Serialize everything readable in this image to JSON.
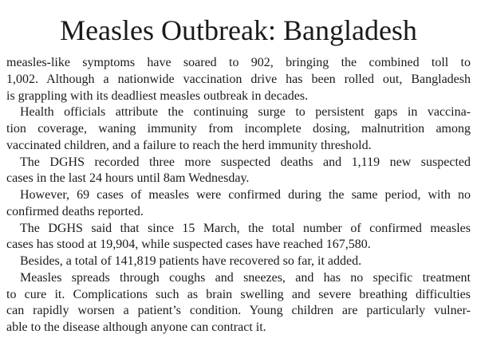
{
  "header": {
    "title": "Measles Outbreak: Bangladesh"
  },
  "body": {
    "paragraphs": [
      [
        "measles-like symptoms have soared to 902, bringing the combined toll to",
        "1,002. Although a nationwide vaccination drive has been rolled out, Bangladesh",
        "is grappling with its deadliest measles outbreak in decades."
      ],
      [
        "Health officials attribute the continuing surge to persistent gaps in vaccina-",
        "tion coverage, waning immunity from incomplete dosing, malnutrition among",
        "vaccinated children, and a failure to reach the herd immunity threshold."
      ],
      [
        "The DGHS recorded three more suspected deaths and 1,119 new suspected",
        "cases in the last 24 hours until 8am Wednesday."
      ],
      [
        "However, 69 cases of measles were confirmed during the same period, with no",
        "confirmed deaths reported."
      ],
      [
        "The DGHS said that since 15 March, the total number of confirmed measles",
        "cases has stood at 19,904, while suspected cases have reached 167,580."
      ],
      [
        "Besides, a total of 141,819 patients have recovered so far, it added."
      ],
      [
        "Measles spreads through coughs and sneezes, and has no specific treatment",
        "to cure it. Complications such as brain swelling and severe breathing difficulties",
        "can rapidly worsen a patient’s condition. Young children are particularly vulner-",
        "able to the disease although anyone can contract it."
      ]
    ]
  }
}
